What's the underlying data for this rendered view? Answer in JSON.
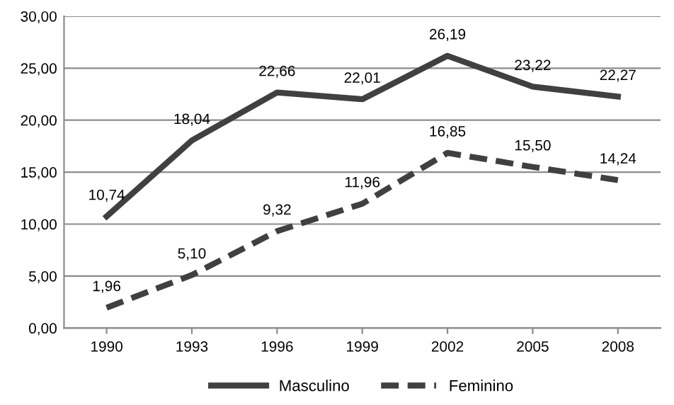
{
  "chart_data": {
    "type": "line",
    "categories": [
      "1990",
      "1993",
      "1996",
      "1999",
      "2002",
      "2005",
      "2008"
    ],
    "series": [
      {
        "name": "Masculino",
        "color": "#404040",
        "line_style": "solid",
        "values": [
          10.74,
          18.04,
          22.66,
          22.01,
          26.19,
          23.22,
          22.27
        ],
        "value_labels": [
          "10,74",
          "18,04",
          "22,66",
          "22,01",
          "26,19",
          "23,22",
          "22,27"
        ]
      },
      {
        "name": "Feminino",
        "color": "#404040",
        "line_style": "dashed",
        "values": [
          1.96,
          5.1,
          9.32,
          11.96,
          16.85,
          15.5,
          14.24
        ],
        "value_labels": [
          "1,96",
          "5,10",
          "9,32",
          "11,96",
          "16,85",
          "15,50",
          "14,24"
        ]
      }
    ],
    "ylim": [
      0,
      30
    ],
    "yticks": [
      {
        "value": 0,
        "label": "0,00"
      },
      {
        "value": 5,
        "label": "5,00"
      },
      {
        "value": 10,
        "label": "10,00"
      },
      {
        "value": 15,
        "label": "15,00"
      },
      {
        "value": 20,
        "label": "20,00"
      },
      {
        "value": 25,
        "label": "25,00"
      },
      {
        "value": 30,
        "label": "30,00"
      }
    ],
    "grid": "y",
    "legend": "bottom",
    "marker": "none"
  }
}
